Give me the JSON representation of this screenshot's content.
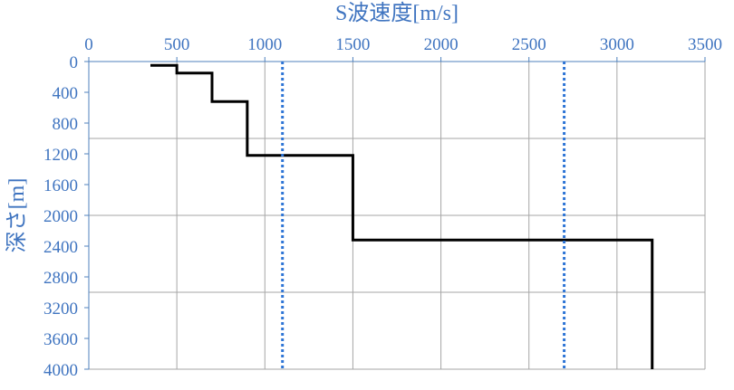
{
  "chart_data": {
    "type": "line",
    "xlabel": "S波速度[m/s]",
    "ylabel": "深さ[m]",
    "xlim": [
      0,
      3500
    ],
    "xticks": [
      0,
      500,
      1000,
      1500,
      2000,
      2500,
      3000,
      3500
    ],
    "ylim": [
      0,
      4000
    ],
    "yticks": [
      0,
      400,
      800,
      1200,
      1600,
      2000,
      2400,
      2800,
      3200,
      3600,
      4000
    ],
    "y_inverted": true,
    "x_axis_position": "top",
    "ygrid": [
      1000,
      2000,
      3000,
      4000
    ],
    "grid": true,
    "series": [
      {
        "color": "#000000",
        "dashed": false,
        "x": [
          350,
          500,
          500,
          700,
          700,
          900,
          900,
          1500,
          1500,
          3200,
          3200
        ],
        "values": [
          50,
          50,
          150,
          150,
          520,
          520,
          1220,
          1220,
          2320,
          2320,
          4000
        ]
      },
      {
        "color": "#2e75d6",
        "dashed": true,
        "x": [
          1100,
          1100
        ],
        "values": [
          0,
          4000
        ]
      },
      {
        "color": "#2e75d6",
        "dashed": true,
        "x": [
          2700,
          2700
        ],
        "values": [
          0,
          4000
        ]
      }
    ]
  }
}
